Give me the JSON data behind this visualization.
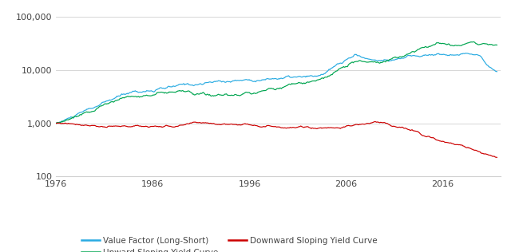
{
  "xlim": [
    1976,
    2022
  ],
  "xticks": [
    1976,
    1986,
    1996,
    2006,
    2016
  ],
  "yticks": [
    100,
    1000,
    10000,
    100000
  ],
  "ytick_labels": [
    "100",
    "1,000",
    "10,000",
    "100,000"
  ],
  "colors": {
    "value_factor": "#29ABE2",
    "upward_yield": "#00A550",
    "downward_yield": "#CC0000"
  },
  "legend": [
    {
      "label": "Value Factor (Long-Short)",
      "color": "#29ABE2"
    },
    {
      "label": "Upward Sloping Yield Curve",
      "color": "#00A550"
    },
    {
      "label": "Downward Sloping Yield Curve",
      "color": "#CC0000"
    }
  ],
  "background_color": "#ffffff",
  "grid_color": "#d0d0d0"
}
